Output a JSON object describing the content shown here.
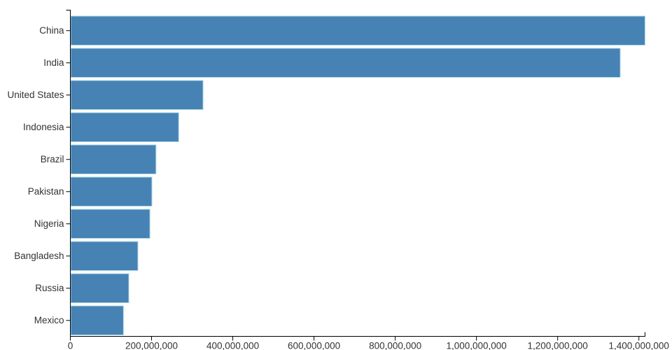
{
  "chart_data": {
    "type": "bar",
    "orientation": "horizontal",
    "categories": [
      "China",
      "India",
      "United States",
      "Indonesia",
      "Brazil",
      "Pakistan",
      "Nigeria",
      "Bangladesh",
      "Russia",
      "Mexico"
    ],
    "values": [
      1415045928,
      1354051854,
      326766748,
      266794980,
      210867954,
      200813818,
      195875237,
      166368149,
      143964709,
      130759074
    ],
    "xlim": [
      0,
      1415045928
    ],
    "x_ticks": [
      0,
      200000000,
      400000000,
      600000000,
      800000000,
      1000000000,
      1200000000,
      1400000000
    ],
    "x_tick_labels": [
      "0",
      "200,000,000",
      "400,000,000",
      "600,000,000",
      "800,000,000",
      "1,000,000,000",
      "1,200,000,000",
      "1,400,000,000"
    ],
    "grid": false,
    "legend": false,
    "colors": {
      "bar_fill": "#4682b4",
      "bar_stroke": "#add8e6",
      "axis": "#000000",
      "text": "#333333",
      "background": "#ffffff"
    }
  }
}
